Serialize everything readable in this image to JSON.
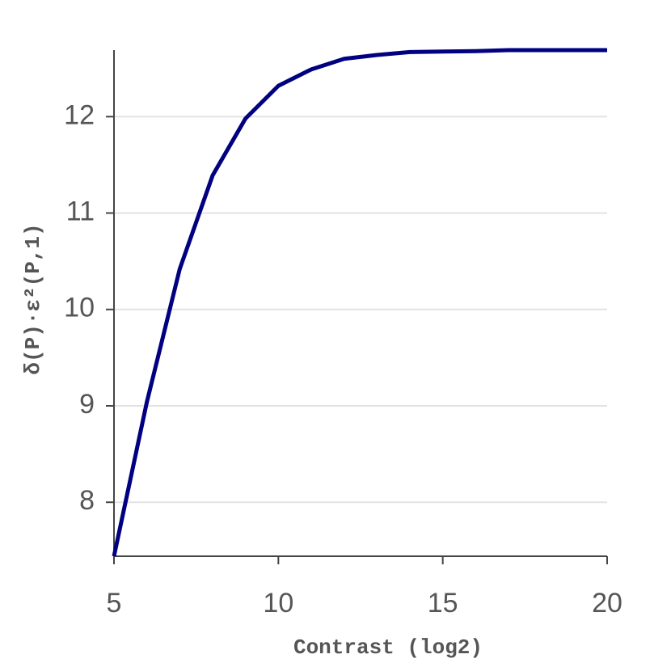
{
  "chart_data": {
    "type": "line",
    "x_label": "Contrast (log2)",
    "y_label": "δ(P)·ε²(P,1)",
    "x": [
      5,
      6,
      7,
      8,
      9,
      10,
      11,
      12,
      13,
      14,
      15,
      16,
      17,
      18,
      19,
      20
    ],
    "series": [
      {
        "color": "#000080",
        "values": [
          7.44,
          9.04,
          10.42,
          11.39,
          11.98,
          12.32,
          12.49,
          12.6,
          12.64,
          12.67,
          12.675,
          12.68,
          12.69,
          12.69,
          12.69,
          12.69
        ]
      }
    ],
    "xlim": [
      5,
      20
    ],
    "ylim": [
      7.44,
      12.69
    ],
    "xticks": [
      5,
      10,
      15,
      20
    ],
    "yticks": [
      8,
      9,
      10,
      11,
      12
    ],
    "grid": true
  }
}
